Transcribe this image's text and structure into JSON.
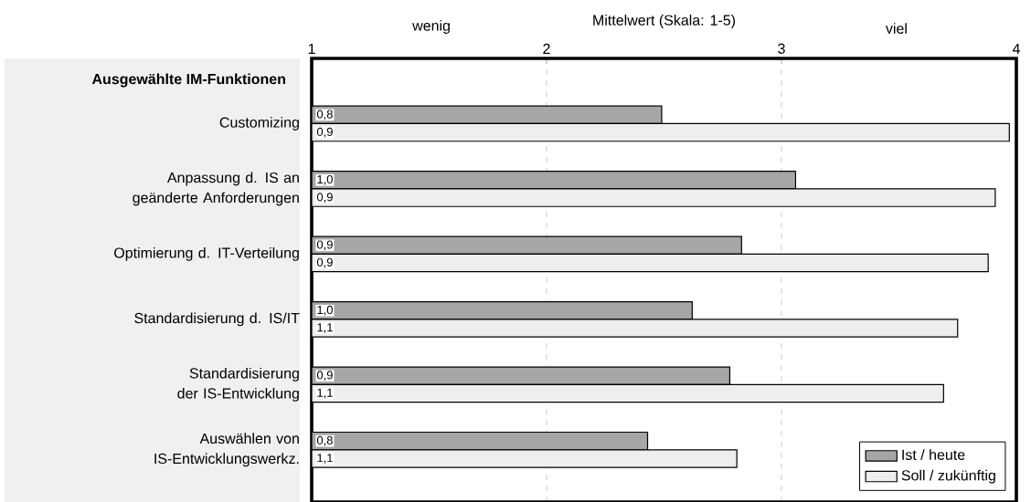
{
  "chart_data": {
    "type": "bar",
    "orientation": "horizontal",
    "xlabel": "Mittelwert (Skala: 1-5)",
    "ylabel": "Ausgewählte IM-Funktionen",
    "annotations": [
      "wenig",
      "viel",
      "0,8",
      "1,0",
      "0,9",
      "1,0",
      "0,9",
      "0,8",
      "0,9",
      "0,9",
      "0,9",
      "1,1",
      "1,1",
      "1,1"
    ],
    "categories": [
      "Customizing",
      "Anpassung d. IS an geänderte Anforderungen",
      "Optimierung d. IT-Verteilung",
      "Standardisierung d. IS/IT",
      "Standardisierung der IS-Entwicklung",
      "Auswählen von IS-Entwicklungswerkz."
    ],
    "series": [
      {
        "name": "Ist / heute",
        "color": "#a6a6a6",
        "values": [
          2.49,
          3.06,
          2.83,
          2.62,
          2.78,
          2.43
        ]
      },
      {
        "name": "Soll / zukünftig",
        "color": "#eeeeee",
        "values": [
          3.97,
          3.91,
          3.88,
          3.75,
          3.69,
          2.81
        ]
      }
    ],
    "xlim": [
      1,
      4
    ],
    "xticks": [
      1,
      2,
      3,
      4
    ],
    "grid": "x",
    "legend": "bottom right"
  }
}
